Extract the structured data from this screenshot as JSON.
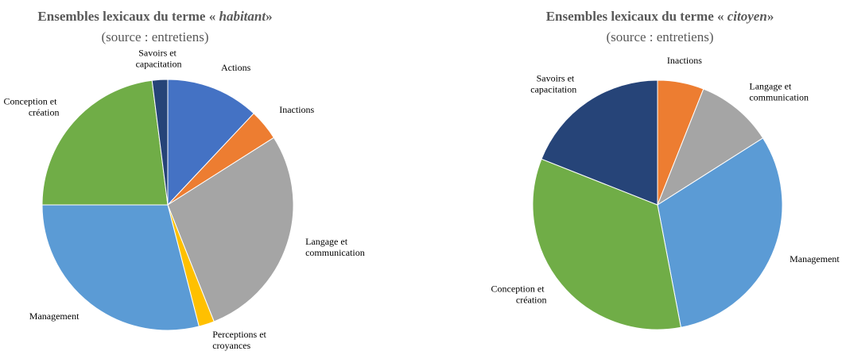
{
  "chart_data": [
    {
      "type": "pie",
      "title": [
        "Ensembles lexicaux du terme « ",
        "habitant",
        "»"
      ],
      "subtitle": "(source : entretiens)",
      "categories": [
        "Actions",
        "Inactions",
        "Langage et communication",
        "Perceptions et croyances",
        "Management",
        "Conception et création",
        "Savoirs et capacitation"
      ],
      "values": [
        12,
        4,
        28,
        2,
        29,
        23,
        2
      ],
      "colors": [
        "#4472c4",
        "#ed7d31",
        "#a5a5a5",
        "#ffc000",
        "#5b9bd5",
        "#70ad47",
        "#264478"
      ]
    },
    {
      "type": "pie",
      "title": [
        "Ensembles lexicaux du terme « ",
        "citoyen",
        "»"
      ],
      "subtitle": "(source : entretiens)",
      "categories": [
        "Inactions",
        "Langage et communication",
        "Management",
        "Conception et création",
        "Savoirs et capacitation"
      ],
      "values": [
        6,
        10,
        31,
        34,
        19
      ],
      "colors": [
        "#ed7d31",
        "#a5a5a5",
        "#5b9bd5",
        "#70ad47",
        "#264478"
      ]
    }
  ]
}
